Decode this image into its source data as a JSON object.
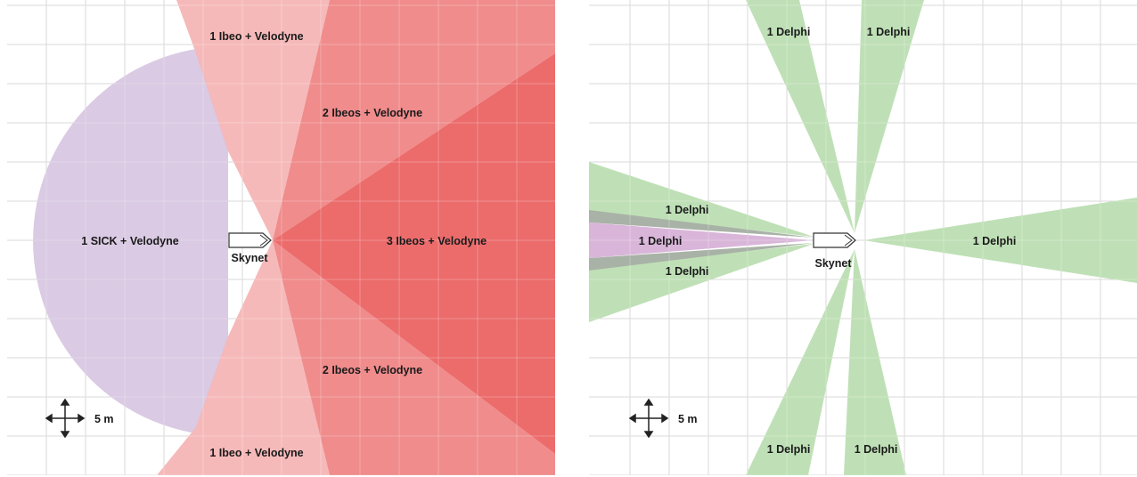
{
  "left_diagram": {
    "vehicle_label": "Skynet",
    "scale_label": "5 m",
    "zones": {
      "sick_velodyne": "1 SICK + Velodyne",
      "ibeo_top": "1 Ibeo + Velodyne",
      "ibeo_bottom": "1 Ibeo + Velodyne",
      "two_ibeos_top": "2 Ibeos + Velodyne",
      "two_ibeos_bottom": "2 Ibeos + Velodyne",
      "three_ibeos": "3 Ibeos + Velodyne"
    },
    "colors": {
      "sick_fill": "#d8c7e2",
      "sick_overlap": "#d9a0c8",
      "ibeo_light": "#f6b9b9",
      "ibeo_medium": "#f08c8c",
      "ibeo_dark": "#ec6b6b",
      "grid": "#cccccc"
    }
  },
  "right_diagram": {
    "vehicle_label": "Skynet",
    "scale_label": "5 m",
    "zones": {
      "delphi_top_left": "1 Delphi",
      "delphi_top_right": "1 Delphi",
      "delphi_left_upper": "1 Delphi",
      "delphi_left_center": "1 Delphi",
      "delphi_left_lower": "1 Delphi",
      "delphi_right": "1 Delphi",
      "delphi_bottom_left": "1 Delphi",
      "delphi_bottom_right": "1 Delphi"
    },
    "colors": {
      "delphi_green": "#bfe0b6",
      "delphi_purple": "#d9b6d9",
      "delphi_gray": "#a9b2a6",
      "grid": "#cccccc"
    }
  }
}
